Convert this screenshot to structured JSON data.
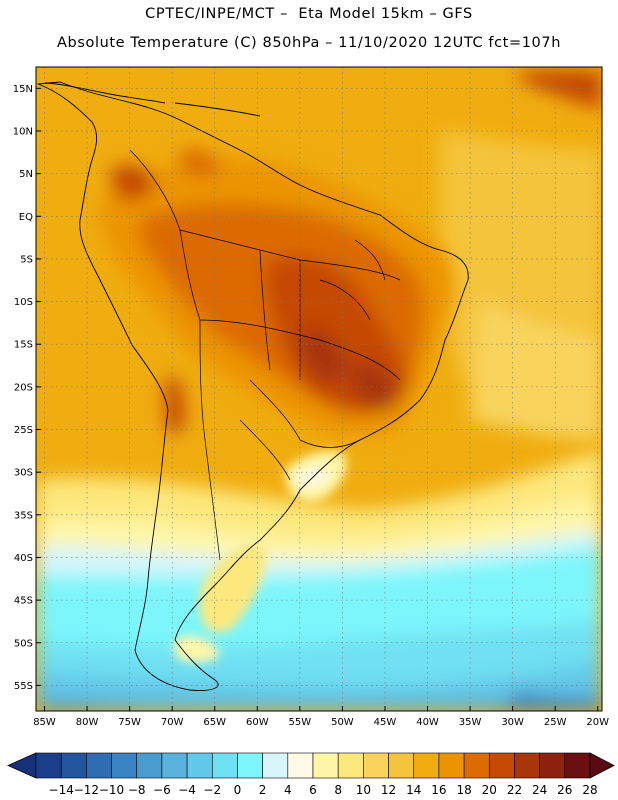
{
  "header": {
    "line1": "CPTEC/INPE/MCT –  Eta Model 15km – GFS",
    "line2": "Absolute Temperature (C) 850hPa – 11/10/2020 12UTC fct=107h"
  },
  "map": {
    "lon_range": [
      -86,
      -19.5
    ],
    "lat_range": [
      -58,
      17.5
    ],
    "lat_ticks": [
      "15N",
      "10N",
      "5N",
      "EQ",
      "5S",
      "10S",
      "15S",
      "20S",
      "25S",
      "30S",
      "35S",
      "40S",
      "45S",
      "50S",
      "55S"
    ],
    "lat_values": [
      15,
      10,
      5,
      0,
      -5,
      -10,
      -15,
      -20,
      -25,
      -30,
      -35,
      -40,
      -45,
      -50,
      -55
    ],
    "lon_ticks": [
      "85W",
      "80W",
      "75W",
      "70W",
      "65W",
      "60W",
      "55W",
      "50W",
      "45W",
      "40W",
      "35W",
      "30W",
      "25W",
      "20W"
    ],
    "lon_values": [
      -85,
      -80,
      -75,
      -70,
      -65,
      -60,
      -55,
      -50,
      -45,
      -40,
      -35,
      -30,
      -25,
      -20
    ],
    "grid": "dotted",
    "coastlines": "black"
  },
  "colorbar": {
    "labels": [
      "-14",
      "-12",
      "-10",
      "-8",
      "-6",
      "-4",
      "-2",
      "0",
      "2",
      "4",
      "6",
      "8",
      "10",
      "12",
      "14",
      "16",
      "18",
      "20",
      "22",
      "24",
      "26",
      "28"
    ],
    "colors": [
      "#1c3f8c",
      "#23559e",
      "#2f6cb3",
      "#3b84c4",
      "#4a9ccf",
      "#5ab3dd",
      "#63c9e8",
      "#6fe0f2",
      "#7cf6fb",
      "#d6f6fb",
      "#fff9e6",
      "#fff6a8",
      "#fde87e",
      "#f8d45d",
      "#f4c43b",
      "#f0ad0f",
      "#ec9400",
      "#dc6b04",
      "#c54a06",
      "#a9360a",
      "#8c220f",
      "#6b0f13"
    ],
    "under_color": "#16307a",
    "over_color": "#5a0b12"
  }
}
